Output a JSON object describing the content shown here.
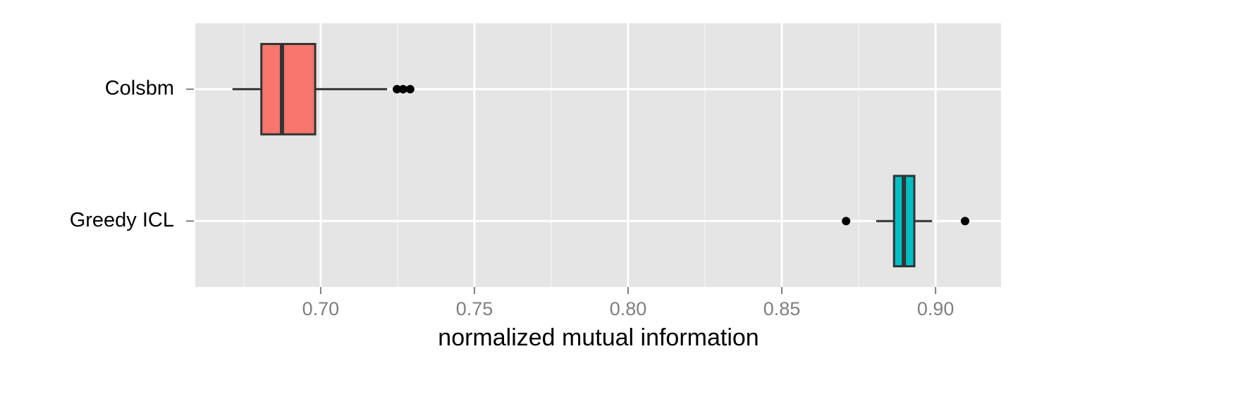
{
  "chart_data": {
    "type": "boxplot",
    "orientation": "horizontal",
    "x_label": "normalized mutual information",
    "categories": [
      "Colsbm",
      "Greedy ICL"
    ],
    "boxes": [
      {
        "color": "#F8766D",
        "whisker_low": 0.6713,
        "q1": 0.6807,
        "median": 0.6874,
        "q3": 0.6982,
        "whisker_high": 0.7216,
        "outliers": [
          0.7248,
          0.7268,
          0.7291
        ]
      },
      {
        "color": "#00BFC4",
        "whisker_low": 0.8807,
        "q1": 0.8865,
        "median": 0.8897,
        "q3": 0.8931,
        "whisker_high": 0.8989,
        "outliers": [
          0.8709,
          0.9096
        ]
      }
    ],
    "xlim": [
      0.6592,
      0.9213
    ],
    "xticks": [
      {
        "value": 0.7,
        "label": "0.70"
      },
      {
        "value": 0.75,
        "label": "0.75"
      },
      {
        "value": 0.8,
        "label": "0.80"
      },
      {
        "value": 0.85,
        "label": "0.85"
      },
      {
        "value": 0.9,
        "label": "0.90"
      }
    ],
    "minor_xticks": [
      0.675,
      0.725,
      0.775,
      0.825,
      0.875
    ],
    "grid": true
  }
}
